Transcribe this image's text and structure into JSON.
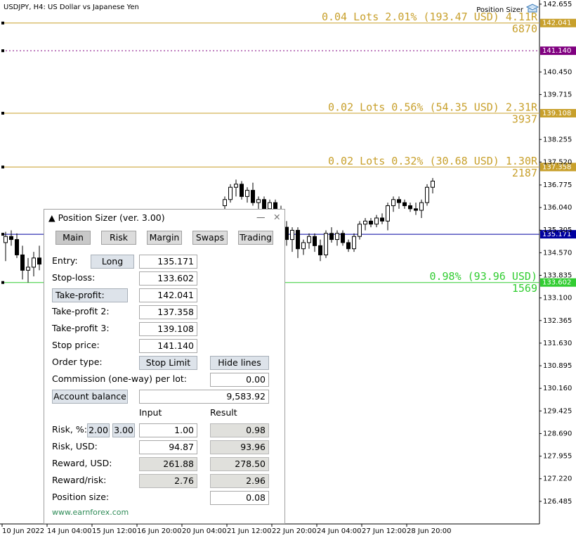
{
  "header": {
    "symbol": "USDJPY, H4:  US Dollar vs Japanese Yen",
    "indicator": "Position Sizer"
  },
  "chart_data": {
    "type": "candlestick",
    "open": [
      134.9,
      135.1,
      135.0,
      134.5,
      134.0,
      134.1,
      134.4,
      null,
      null,
      null,
      null,
      null,
      null,
      null,
      null,
      null,
      null,
      null,
      null,
      null,
      null,
      null,
      null,
      null,
      null,
      null,
      null,
      null,
      null,
      null,
      null,
      null,
      null,
      null,
      null,
      null,
      null,
      null,
      null,
      136.1,
      136.3,
      136.7,
      136.8,
      136.4,
      136.6,
      136.2,
      136.3,
      136.0,
      136.2,
      135.9,
      135.4,
      135.0,
      135.3,
      134.7,
      134.9,
      135.1,
      134.8,
      134.5,
      135.2,
      135.0,
      135.2,
      134.9,
      134.7,
      135.1,
      135.5,
      135.6,
      135.5,
      135.7,
      135.6,
      136.1,
      136.3,
      136.2,
      136.1,
      136.0,
      135.95,
      136.2,
      136.7
    ],
    "high": [
      135.25,
      135.3,
      135.2,
      134.8,
      134.4,
      134.6,
      134.8,
      null,
      null,
      null,
      null,
      null,
      null,
      null,
      null,
      null,
      null,
      null,
      null,
      null,
      null,
      null,
      null,
      null,
      null,
      null,
      null,
      null,
      null,
      null,
      null,
      null,
      null,
      null,
      null,
      null,
      null,
      null,
      null,
      136.4,
      136.8,
      136.95,
      136.9,
      136.7,
      136.85,
      136.4,
      136.4,
      136.3,
      136.3,
      136.1,
      135.6,
      135.4,
      135.4,
      135.0,
      135.2,
      135.2,
      135.0,
      135.3,
      135.4,
      135.3,
      135.3,
      135.0,
      135.2,
      135.6,
      135.7,
      135.7,
      135.8,
      135.85,
      136.2,
      136.4,
      136.4,
      136.3,
      136.2,
      136.2,
      136.3,
      136.8,
      137.0
    ],
    "low": [
      134.3,
      134.8,
      134.4,
      133.7,
      133.6,
      133.8,
      134.0,
      null,
      null,
      null,
      null,
      null,
      null,
      null,
      null,
      null,
      null,
      null,
      null,
      null,
      null,
      null,
      null,
      null,
      null,
      null,
      null,
      null,
      null,
      null,
      null,
      null,
      null,
      null,
      null,
      null,
      null,
      null,
      null,
      135.9,
      136.2,
      136.4,
      136.3,
      136.2,
      136.1,
      136.0,
      135.9,
      135.9,
      135.8,
      135.3,
      134.8,
      134.6,
      134.4,
      134.5,
      134.7,
      134.6,
      134.3,
      134.4,
      134.9,
      134.8,
      134.8,
      134.6,
      134.6,
      135.0,
      135.3,
      135.4,
      135.4,
      135.5,
      135.3,
      135.9,
      136.0,
      136.0,
      135.9,
      135.8,
      135.7,
      136.1,
      136.5
    ],
    "close": [
      135.1,
      135.0,
      134.5,
      134.0,
      134.1,
      134.4,
      134.2,
      null,
      null,
      null,
      null,
      null,
      null,
      null,
      null,
      null,
      null,
      null,
      null,
      null,
      null,
      null,
      null,
      null,
      null,
      null,
      null,
      null,
      null,
      null,
      null,
      null,
      null,
      null,
      null,
      null,
      null,
      null,
      null,
      136.3,
      136.7,
      136.8,
      136.4,
      136.6,
      136.2,
      136.3,
      136.0,
      136.2,
      135.9,
      135.4,
      135.0,
      135.3,
      134.7,
      134.9,
      135.1,
      134.8,
      134.5,
      135.2,
      135.0,
      135.2,
      134.9,
      134.7,
      135.1,
      135.5,
      135.6,
      135.5,
      135.7,
      135.6,
      136.1,
      136.3,
      136.2,
      136.1,
      136.0,
      135.95,
      136.2,
      136.7,
      136.9
    ],
    "ylim": [
      125.75,
      142.79
    ],
    "yticks": [
      {
        "value": 142.655,
        "label": "142.655"
      },
      {
        "value": 140.45,
        "label": "140.450"
      },
      {
        "value": 139.715,
        "label": "139.715"
      },
      {
        "value": 138.255,
        "label": "138.255"
      },
      {
        "value": 137.52,
        "label": "137.520"
      },
      {
        "value": 136.775,
        "label": "136.775"
      },
      {
        "value": 136.04,
        "label": "136.040"
      },
      {
        "value": 135.305,
        "label": "135.305"
      },
      {
        "value": 134.57,
        "label": "134.570"
      },
      {
        "value": 133.835,
        "label": "133.835"
      },
      {
        "value": 133.1,
        "label": "133.100"
      },
      {
        "value": 132.365,
        "label": "132.365"
      },
      {
        "value": 131.63,
        "label": "131.630"
      },
      {
        "value": 130.895,
        "label": "130.895"
      },
      {
        "value": 130.16,
        "label": "130.160"
      },
      {
        "value": 129.425,
        "label": "129.425"
      },
      {
        "value": 128.69,
        "label": "128.690"
      },
      {
        "value": 127.955,
        "label": "127.955"
      },
      {
        "value": 127.22,
        "label": "127.220"
      },
      {
        "value": 126.485,
        "label": "126.485"
      }
    ],
    "xticks": [
      "10 Jun 2022",
      "14 Jun 04:00",
      "15 Jun 12:00",
      "16 Jun 20:00",
      "20 Jun 04:00",
      "21 Jun 12:00",
      "22 Jun 20:00",
      "24 Jun 04:00",
      "27 Jun 12:00",
      "28 Jun 20:00"
    ],
    "levels": [
      {
        "price": {
          "value": 142.041,
          "label": "142.041"
        },
        "color": "#c8a02c",
        "style": "solid",
        "info": "0.04 Lots 2.01% (193.47 USD) 4.11R",
        "points": "6870"
      },
      {
        "price": {
          "value": 141.14,
          "label": "141.140"
        },
        "color": "#800080",
        "style": "dotted"
      },
      {
        "price": {
          "value": 139.108,
          "label": "139.108"
        },
        "color": "#c8a02c",
        "style": "solid",
        "info": "0.02 Lots 0.56% (54.35 USD) 2.31R",
        "points": "3937"
      },
      {
        "price": {
          "value": 137.358,
          "label": "137.358"
        },
        "color": "#c8a02c",
        "style": "solid",
        "info": "0.02 Lots 0.32% (30.68 USD) 1.30R",
        "points": "2187"
      },
      {
        "price": {
          "value": 135.171,
          "label": "135.171"
        },
        "color": "#0000a0",
        "style": "solid"
      },
      {
        "price": {
          "value": 133.602,
          "label": "133.602"
        },
        "color": "#32cd32",
        "style": "solid",
        "info": "0.98% (93.96 USD)",
        "points": "1569"
      }
    ]
  },
  "panel": {
    "title": "Position Sizer (ver. 3.00)",
    "tabs": [
      "Main",
      "Risk",
      "Margin",
      "Swaps",
      "Trading"
    ],
    "entry": {
      "label": "Entry:",
      "button": "Long",
      "value": "135.171"
    },
    "stop_loss": {
      "label": "Stop-loss:",
      "value": "133.602"
    },
    "take_profit": {
      "label": "Take-profit:",
      "value": "142.041"
    },
    "take_profit_2": {
      "label": "Take-profit 2:",
      "value": "137.358"
    },
    "take_profit_3": {
      "label": "Take-profit 3:",
      "value": "139.108"
    },
    "stop_price": {
      "label": "Stop price:",
      "value": "141.140"
    },
    "order_type": {
      "label": "Order type:",
      "button": "Stop Limit",
      "hide": "Hide lines"
    },
    "commission": {
      "label": "Commission (one-way) per lot:",
      "value": "0.00"
    },
    "account_balance": {
      "label": "Account balance",
      "value": "9,583.92"
    },
    "columns": [
      "Input",
      "Result"
    ],
    "risk_pct": {
      "label": "Risk, %:",
      "presets": [
        "2.00",
        "3.00"
      ],
      "input": "1.00",
      "result": "0.98"
    },
    "risk_usd": {
      "label": "Risk, USD:",
      "input": "94.87",
      "result": "93.96"
    },
    "reward": {
      "label": "Reward, USD:",
      "input": "261.88",
      "result": "278.50"
    },
    "reward_risk": {
      "label": "Reward/risk:",
      "input": "2.76",
      "result": "2.96"
    },
    "position_size": {
      "label": "Position size:",
      "result": "0.08"
    },
    "link": "www.earnforex.com"
  }
}
